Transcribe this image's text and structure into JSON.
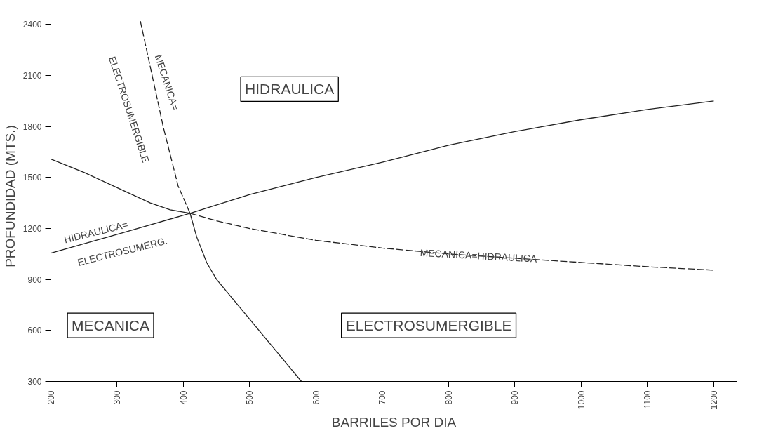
{
  "chart_data": {
    "type": "line",
    "xlabel": "BARRILES POR DIA",
    "ylabel": "PROFUNDIDAD (MTS.)",
    "xlim": [
      200,
      1235
    ],
    "xticks": [
      200,
      300,
      400,
      500,
      600,
      700,
      800,
      900,
      1000,
      1100,
      1200
    ],
    "ylim": [
      300,
      2480
    ],
    "yticks": [
      300,
      600,
      900,
      1200,
      1500,
      1800,
      2100,
      2400
    ],
    "grid": false,
    "marker": "none",
    "series": [
      {
        "color": "#222222",
        "line_style": "solid",
        "x": [
          200,
          250,
          300,
          350,
          380,
          410
        ],
        "values": [
          1608,
          1530,
          1440,
          1350,
          1310,
          1289
        ]
      },
      {
        "color": "#222222",
        "line_style": "dashed",
        "x": [
          410,
          450,
          500,
          600,
          700,
          800,
          900,
          1000,
          1100,
          1200
        ],
        "values": [
          1289,
          1245,
          1200,
          1130,
          1085,
          1050,
          1025,
          1000,
          975,
          955
        ]
      },
      {
        "color": "#222222",
        "line_style": "solid",
        "x": [
          200,
          300,
          410,
          500,
          600,
          700,
          800,
          900,
          1000,
          1100,
          1200
        ],
        "values": [
          1055,
          1165,
          1289,
          1400,
          1500,
          1590,
          1690,
          1770,
          1840,
          1900,
          1950
        ]
      },
      {
        "color": "#222222",
        "line_style": "dashed",
        "x": [
          335,
          350,
          370,
          392,
          410
        ],
        "values": [
          2420,
          2150,
          1790,
          1450,
          1289
        ]
      },
      {
        "color": "#222222",
        "line_style": "solid",
        "x": [
          410,
          420,
          435,
          450,
          578
        ],
        "values": [
          1289,
          1150,
          1000,
          900,
          300
        ]
      }
    ],
    "annotations": [
      "HIDRAULICA",
      "MECANICA",
      "ELECTROSUMERGIBLE",
      "MECANICA=HIDRAULICA",
      "HIDRAULICA=",
      "ELECTROSUMERG.",
      "MECANICA=",
      "ELECTROSUMERGIBLE"
    ]
  }
}
